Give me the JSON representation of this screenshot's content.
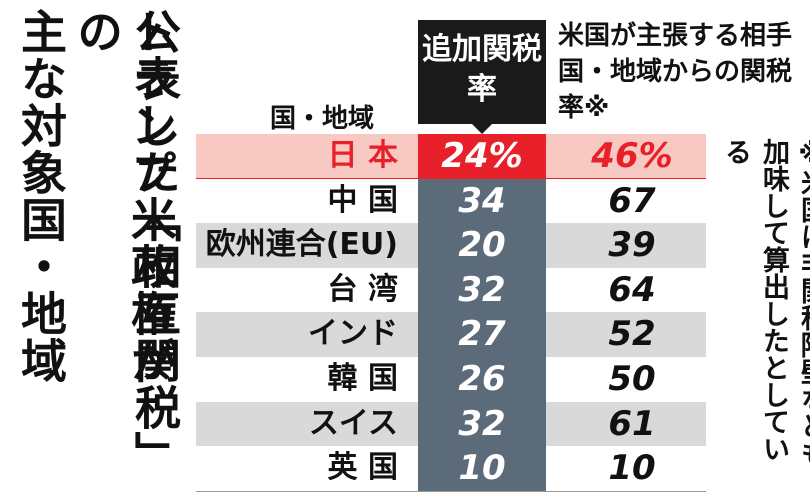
{
  "title_lines": [
    "トランプ米政権が",
    "公表した「相互関税」の",
    "主な対象国・地域"
  ],
  "headers": {
    "country": "国・地域",
    "additional_tariff": "追加関税率",
    "claimed_rate": "米国が主張する相手国・地域からの関税率※"
  },
  "note": "※米国は非関税障壁なども加味して算出したとしている",
  "colors": {
    "highlight_red": "#e8202a",
    "highlight_row_bg": "#f7c9c2",
    "bar_gray": "#5b6b7a",
    "alt_row_bg": "#d9d9d9"
  },
  "chart_data": {
    "type": "table",
    "columns": [
      "国・地域",
      "追加関税率",
      "米国が主張する相手国・地域からの関税率※"
    ],
    "rows": [
      {
        "country": "日 本",
        "additional": "24%",
        "claimed": "46%",
        "highlight": true
      },
      {
        "country": "中 国",
        "additional": "34",
        "claimed": "67"
      },
      {
        "country": "欧州連合(EU)",
        "additional": "20",
        "claimed": "39"
      },
      {
        "country": "台 湾",
        "additional": "32",
        "claimed": "64"
      },
      {
        "country": "インド",
        "additional": "27",
        "claimed": "52"
      },
      {
        "country": "韓 国",
        "additional": "26",
        "claimed": "50"
      },
      {
        "country": "スイス",
        "additional": "32",
        "claimed": "61"
      },
      {
        "country": "英 国",
        "additional": "10",
        "claimed": "10"
      }
    ]
  }
}
